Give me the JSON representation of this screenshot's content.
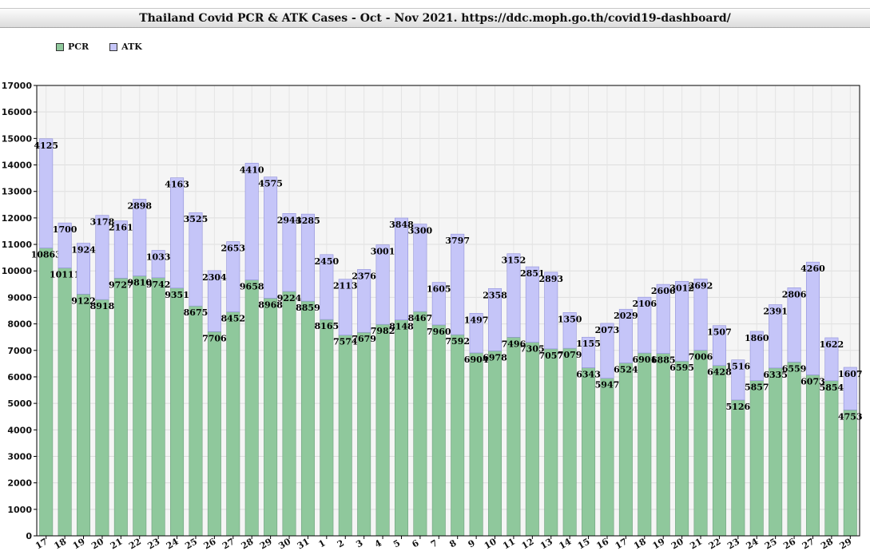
{
  "chart_data": {
    "type": "bar",
    "stacked": true,
    "title": "Thailand Covid PCR & ATK Cases - Oct - Nov 2021. https://ddc.moph.go.th/covid19-dashboard/",
    "categories": [
      "17",
      "18",
      "19",
      "20",
      "21",
      "22",
      "23",
      "24",
      "25",
      "26",
      "27",
      "28",
      "29",
      "30",
      "31",
      "1",
      "2",
      "3",
      "4",
      "5",
      "6",
      "7",
      "8",
      "9",
      "10",
      "11",
      "12",
      "13",
      "14",
      "15",
      "16",
      "17",
      "18",
      "19",
      "20",
      "21",
      "22",
      "23",
      "24",
      "25",
      "26",
      "27",
      "28",
      "29"
    ],
    "series": [
      {
        "name": "PCR",
        "color": "#8fc89c",
        "values": [
          10863,
          10111,
          9122,
          8918,
          9727,
          9810,
          9742,
          9351,
          8675,
          7706,
          8452,
          9658,
          8968,
          9224,
          8859,
          8165,
          7574,
          7679,
          7982,
          8148,
          8467,
          7960,
          7592,
          6904,
          6978,
          7496,
          7305,
          7057,
          7079,
          6343,
          5947,
          6524,
          6901,
          6885,
          6595,
          7006,
          6428,
          5126,
          5857,
          6335,
          6559,
          6073,
          5854,
          4753
        ]
      },
      {
        "name": "ATK",
        "color": "#c5c5f8",
        "values": [
          4125,
          1700,
          1924,
          3178,
          2161,
          2898,
          1033,
          4163,
          3525,
          2304,
          2653,
          4410,
          4575,
          2944,
          3285,
          2450,
          2113,
          2376,
          3001,
          3848,
          3300,
          1605,
          3797,
          1497,
          2358,
          3152,
          2851,
          2893,
          1350,
          1155,
          2073,
          2029,
          2106,
          2606,
          3012,
          2692,
          1507,
          1516,
          1860,
          2391,
          2806,
          4260,
          1622,
          1607
        ]
      }
    ],
    "ylim": [
      0,
      17000
    ],
    "yticks": [
      0,
      1000,
      2000,
      3000,
      4000,
      5000,
      6000,
      7000,
      8000,
      9000,
      10000,
      11000,
      12000,
      13000,
      14000,
      15000,
      16000,
      17000
    ],
    "grid": true,
    "legend_position": "top-left"
  }
}
